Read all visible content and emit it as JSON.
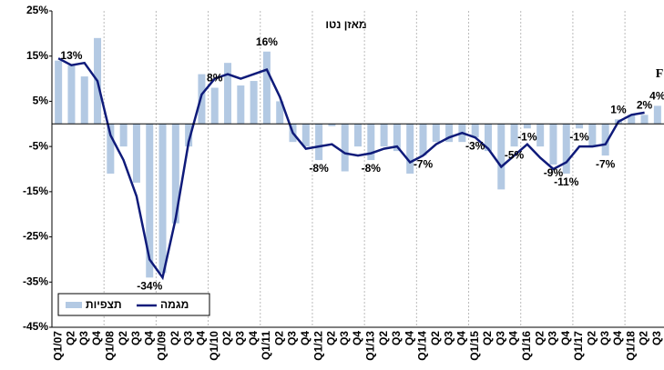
{
  "chart_data": {
    "type": "bar-line",
    "title": "מאזן נטו",
    "categories": [
      "Q1/07",
      "Q2",
      "Q3",
      "Q4",
      "Q1/08",
      "Q2",
      "Q3",
      "Q4",
      "Q1/09",
      "Q2",
      "Q3",
      "Q4",
      "Q1/10",
      "Q2",
      "Q3",
      "Q4",
      "Q1/11",
      "Q2",
      "Q3",
      "Q4",
      "Q1/12",
      "Q2",
      "Q3",
      "Q4",
      "Q1/13",
      "Q2",
      "Q3",
      "Q4",
      "Q1/14",
      "Q2",
      "Q3",
      "Q4",
      "Q1/15",
      "Q2",
      "Q3",
      "Q4",
      "Q1/16",
      "Q2",
      "Q3",
      "Q4",
      "Q1/17",
      "Q2",
      "Q3",
      "Q4",
      "Q1/18",
      "Q2",
      "Q3"
    ],
    "series": [
      {
        "name": "תצפיות",
        "type": "bar",
        "color": "#b3c9e3",
        "values": [
          14,
          13,
          10.5,
          19,
          -11,
          -5,
          -13,
          -34,
          -33,
          -22,
          -5,
          11,
          8,
          13.5,
          8.5,
          9.5,
          16,
          5,
          -4,
          -5,
          -8,
          -0.5,
          -10.5,
          -5,
          -8,
          -5,
          -6,
          -11,
          -7,
          -4,
          -4,
          -4,
          -3,
          -6,
          -14.5,
          -5,
          -1,
          -5,
          -9,
          -11,
          -1,
          -5,
          -7,
          1,
          2,
          2,
          4
        ],
        "value_labels": [
          null,
          "13%",
          null,
          null,
          null,
          null,
          null,
          "-34%",
          null,
          null,
          null,
          null,
          "8%",
          null,
          null,
          null,
          "16%",
          null,
          null,
          null,
          "-8%",
          null,
          null,
          null,
          "-8%",
          null,
          null,
          null,
          "-7%",
          null,
          null,
          null,
          "-3%",
          null,
          null,
          "-5%",
          "-1%",
          null,
          "-9%",
          "-11%",
          "-1%",
          null,
          "-7%",
          "1%",
          null,
          "2%",
          "4%"
        ]
      },
      {
        "name": "מגמה",
        "type": "line",
        "color": "#0f1b7a",
        "values": [
          14.5,
          13,
          13.5,
          9.5,
          -2.5,
          -8,
          -16,
          -30,
          -34,
          -21,
          -4,
          6.5,
          10,
          11,
          10,
          11,
          12,
          6,
          -2,
          -5.5,
          -5,
          -4.5,
          -6.5,
          -7,
          -6.5,
          -5.5,
          -5,
          -8.5,
          -7,
          -4.5,
          -3,
          -2,
          -3,
          -5.5,
          -9.5,
          -7,
          -4.5,
          -7.5,
          -10,
          -8.5,
          -5,
          -5,
          -4.5,
          0.5,
          2,
          2.5,
          null
        ]
      }
    ],
    "annotation": "F",
    "ylim": [
      -45,
      25
    ],
    "yticks": [
      {
        "value": 25,
        "label": "25%"
      },
      {
        "value": 15,
        "label": "15%"
      },
      {
        "value": 5,
        "label": "5%"
      },
      {
        "value": -5,
        "label": "-5%"
      },
      {
        "value": -15,
        "label": "-15%"
      },
      {
        "value": -25,
        "label": "-25%"
      },
      {
        "value": -35,
        "label": "-35%"
      },
      {
        "value": -45,
        "label": "-45%"
      }
    ]
  }
}
